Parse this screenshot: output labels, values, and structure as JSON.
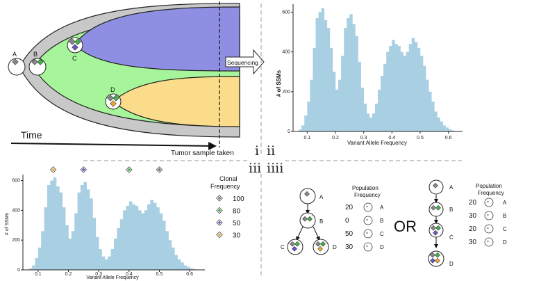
{
  "panel_i": {
    "clone_labels": [
      "A",
      "B",
      "C",
      "D"
    ],
    "time_label": "Time",
    "sample_label": "Tumor sample taken",
    "sequencing_label": "Sequencing",
    "colors": {
      "outer": "#c8c8c8",
      "B": "#a6f59a",
      "C": "#8e8fe3",
      "D": "#fadc8a"
    }
  },
  "roman": {
    "i": "i",
    "ii": "ii",
    "iii": "iii",
    "iiii": "iiii"
  },
  "chart_top": {
    "type": "bar",
    "ylabel": "# of SSMs",
    "xlabel": "Variant Allele Frequency",
    "xlim": [
      0.05,
      0.65
    ],
    "ylim": [
      0,
      640
    ],
    "xticks": [
      "0.1",
      "0.2",
      "0.3",
      "0.4",
      "0.5",
      "0.6"
    ],
    "yticks": [
      "0",
      "200",
      "400",
      "600"
    ]
  },
  "chart_bottom": {
    "type": "bar",
    "ylabel": "# of SSMs",
    "xlabel": "Variant Allele Frequency",
    "xlim": [
      0.05,
      0.65
    ],
    "ylim": [
      0,
      640
    ],
    "xticks": [
      "0.1",
      "0.2",
      "0.3",
      "0.4",
      "0.5",
      "0.6"
    ],
    "yticks": [
      "0",
      "200",
      "400",
      "600"
    ],
    "markers": [
      {
        "x": 0.15,
        "color": "#e8a832"
      },
      {
        "x": 0.25,
        "color": "#6a55c8"
      },
      {
        "x": 0.4,
        "color": "#3fb04a"
      },
      {
        "x": 0.5,
        "color": "#777777"
      }
    ]
  },
  "chart_data": {
    "type": "bar",
    "x": [
      0.075,
      0.085,
      0.095,
      0.105,
      0.115,
      0.125,
      0.135,
      0.145,
      0.155,
      0.165,
      0.175,
      0.185,
      0.195,
      0.205,
      0.215,
      0.225,
      0.235,
      0.245,
      0.255,
      0.265,
      0.275,
      0.285,
      0.295,
      0.305,
      0.315,
      0.325,
      0.335,
      0.345,
      0.355,
      0.365,
      0.375,
      0.385,
      0.395,
      0.405,
      0.415,
      0.425,
      0.435,
      0.445,
      0.455,
      0.465,
      0.475,
      0.485,
      0.495,
      0.505,
      0.515,
      0.525,
      0.535,
      0.545,
      0.555,
      0.565,
      0.575,
      0.585,
      0.595,
      0.605,
      0.615
    ],
    "values": [
      10,
      30,
      80,
      150,
      260,
      420,
      570,
      600,
      620,
      560,
      520,
      420,
      300,
      210,
      260,
      380,
      520,
      570,
      590,
      540,
      480,
      350,
      220,
      140,
      90,
      70,
      90,
      140,
      210,
      280,
      340,
      400,
      430,
      460,
      440,
      430,
      400,
      380,
      400,
      440,
      470,
      450,
      420,
      380,
      330,
      260,
      200,
      150,
      100,
      70,
      50,
      30,
      20,
      10,
      5
    ],
    "ylabel": "# of SSMs",
    "xlabel": "Variant Allele Frequency"
  },
  "legend": {
    "title": "Clonal\nFrequency",
    "title_line1": "Clonal",
    "title_line2": "Frequency",
    "items": [
      {
        "value": "100",
        "color": "#777777"
      },
      {
        "value": "80",
        "color": "#3fb04a"
      },
      {
        "value": "50",
        "color": "#6a55c8"
      },
      {
        "value": "30",
        "color": "#e8a832"
      }
    ]
  },
  "tree1": {
    "nodes": [
      "A",
      "B",
      "C",
      "D"
    ],
    "pop_title_line1": "Population",
    "pop_title_line2": "Frequency",
    "pop": [
      {
        "value": "20",
        "label": "A"
      },
      {
        "value": "0",
        "label": "B"
      },
      {
        "value": "50",
        "label": "C"
      },
      {
        "value": "30",
        "label": "D"
      }
    ]
  },
  "or_label": "OR",
  "tree2": {
    "nodes": [
      "A",
      "B",
      "C",
      "D"
    ],
    "pop_title_line1": "Population",
    "pop_title_line2": "Frequency",
    "pop": [
      {
        "value": "20",
        "label": "A"
      },
      {
        "value": "30",
        "label": "B"
      },
      {
        "value": "20",
        "label": "C"
      },
      {
        "value": "30",
        "label": "D"
      }
    ]
  }
}
